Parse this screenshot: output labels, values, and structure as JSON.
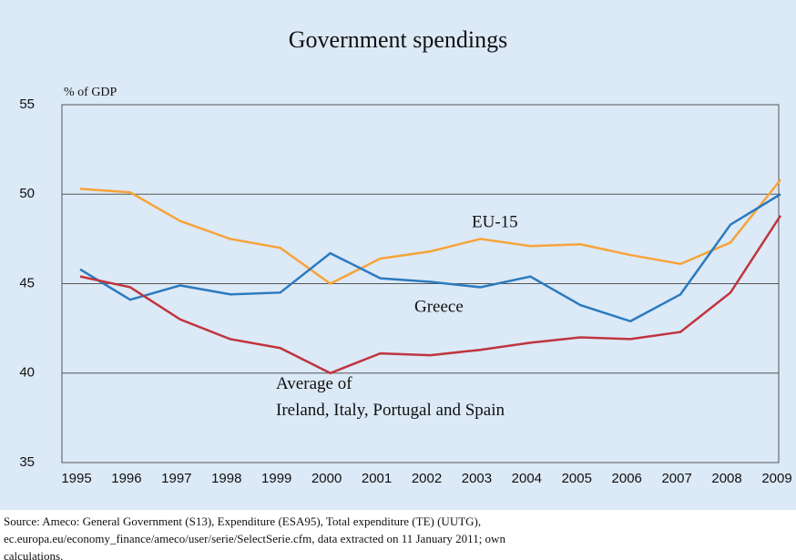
{
  "chart_data": {
    "type": "line",
    "title": "Government spendings",
    "y_label": "% of GDP",
    "categories": [
      "1995",
      "1996",
      "1997",
      "1998",
      "1999",
      "2000",
      "2001",
      "2002",
      "2003",
      "2004",
      "2005",
      "2006",
      "2007",
      "2008",
      "2009"
    ],
    "series": [
      {
        "name": "EU-15",
        "color": "#f6a43a",
        "values": [
          50.3,
          50.1,
          48.5,
          47.5,
          47.0,
          45.0,
          46.4,
          46.8,
          47.5,
          47.1,
          47.2,
          46.6,
          46.1,
          47.3,
          50.8
        ]
      },
      {
        "name": "Greece",
        "color": "#2b7bbf",
        "values": [
          45.8,
          44.1,
          44.9,
          44.4,
          44.5,
          46.7,
          45.3,
          45.1,
          44.8,
          45.4,
          43.8,
          42.9,
          44.4,
          48.3,
          50.0
        ]
      },
      {
        "name": "Average of Ireland, Italy, Portugal and Spain",
        "color": "#c0353e",
        "values": [
          45.4,
          44.8,
          43.0,
          41.9,
          41.4,
          40.0,
          41.1,
          41.0,
          41.3,
          41.7,
          42.0,
          41.9,
          42.3,
          44.5,
          48.8
        ]
      }
    ],
    "ylim": [
      35,
      55
    ],
    "yticks": [
      35,
      40,
      45,
      50,
      55
    ],
    "grid": true,
    "source": [
      "Source: Ameco: General Government (S13), Expenditure (ESA95), Total expenditure (TE) (UUTG),",
      "ec.europa.eu/economy_finance/ameco/user/serie/SelectSerie.cfm, data extracted on 11 January 2011; own",
      "calculations."
    ]
  }
}
